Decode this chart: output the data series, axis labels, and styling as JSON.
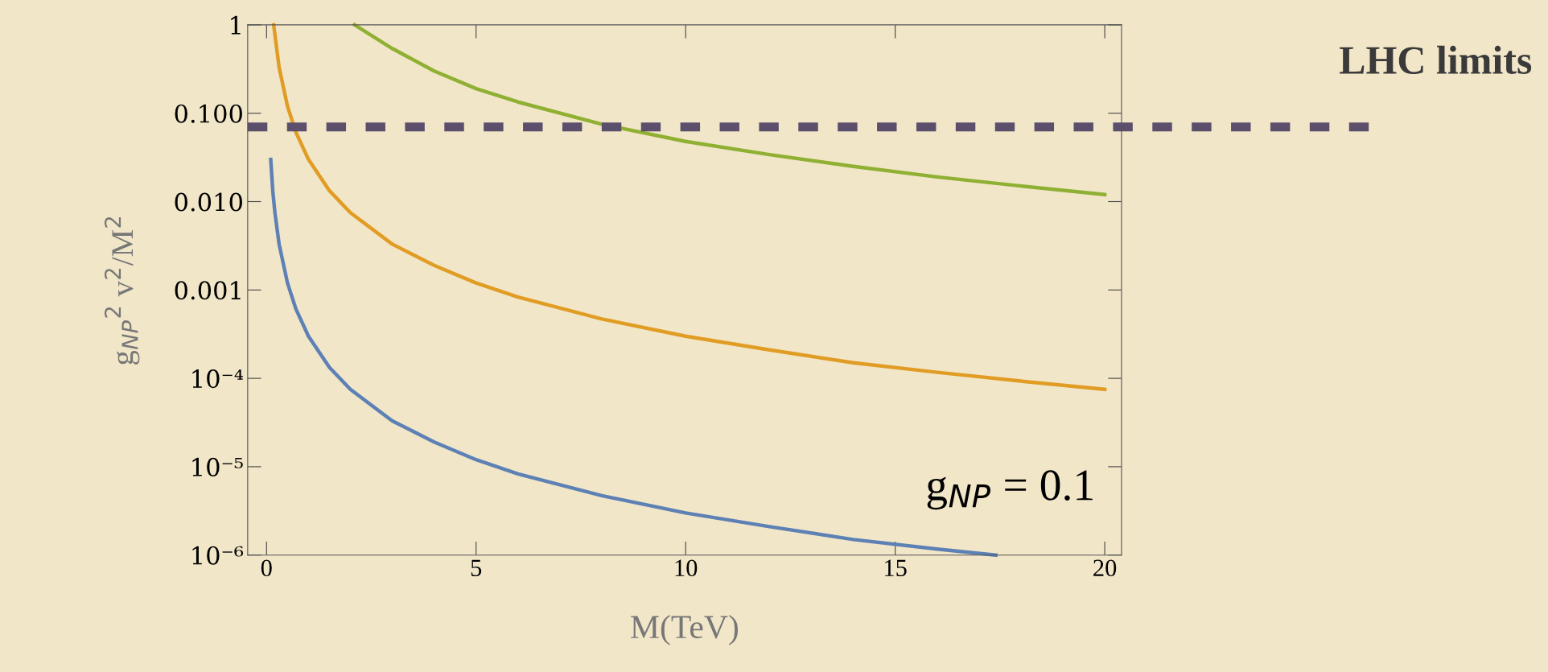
{
  "chart_data": {
    "type": "line",
    "xlabel": "M(TeV)",
    "ylabel": "g$_{NP}$$^{2}$ v$^{2}$/M$^{2}$",
    "log": "y",
    "xlim": [
      -0.45,
      20.4
    ],
    "xticks": [
      0,
      5,
      10,
      15,
      20
    ],
    "ylim": [
      1e-06,
      1
    ],
    "yticks": [
      {
        "value": 1e-06,
        "label": "10⁻⁶"
      },
      {
        "value": 1e-05,
        "label": "10⁻⁵"
      },
      {
        "value": 0.0001,
        "label": "10⁻⁴"
      },
      {
        "value": 0.001,
        "label": "0.001"
      },
      {
        "value": 0.01,
        "label": "0.010"
      },
      {
        "value": 0.1,
        "label": "0.100"
      },
      {
        "value": 1,
        "label": "1"
      }
    ],
    "grid": false,
    "legend": false,
    "marker": "none",
    "line_style": "solid",
    "series": [
      {
        "color": "#5e81b5",
        "x": [
          0.1,
          0.15,
          0.2,
          0.3,
          0.5,
          0.7,
          1,
          1.5,
          2,
          3,
          4,
          5,
          6,
          8,
          10,
          12,
          14,
          16,
          17.4
        ],
        "values": [
          0.03,
          0.013,
          0.0075,
          0.0033,
          0.0012,
          0.00061,
          0.0003,
          0.000133,
          7.5e-05,
          3.3e-05,
          1.9e-05,
          1.2e-05,
          8.3e-06,
          4.7e-06,
          3e-06,
          2.1e-06,
          1.5e-06,
          1.17e-06,
          1e-06
        ]
      },
      {
        "color": "#e19c24",
        "x": [
          0.17,
          0.3,
          0.5,
          0.7,
          1,
          1.5,
          2,
          3,
          4,
          5,
          6,
          8,
          10,
          12,
          14,
          16,
          18,
          20
        ],
        "values": [
          1.0,
          0.33,
          0.12,
          0.061,
          0.03,
          0.0133,
          0.0075,
          0.0033,
          0.0019,
          0.0012,
          0.00083,
          0.00047,
          0.0003,
          0.00021,
          0.00015,
          0.000117,
          9.3e-05,
          7.5e-05
        ]
      },
      {
        "color": "#8fb032",
        "x": [
          2.1,
          3,
          4,
          5,
          6,
          8,
          10,
          12,
          14,
          16,
          18,
          20
        ],
        "values": [
          1.0,
          0.54,
          0.3,
          0.19,
          0.134,
          0.075,
          0.048,
          0.034,
          0.025,
          0.019,
          0.015,
          0.012
        ]
      }
    ],
    "ref_lines": [
      {
        "axis": "y",
        "value": 0.07,
        "label": "LHC limits",
        "color": "#5c4f6c",
        "line_style": "dashed"
      }
    ],
    "annotations": [
      "g$_{NP}$ = 0.1"
    ]
  }
}
